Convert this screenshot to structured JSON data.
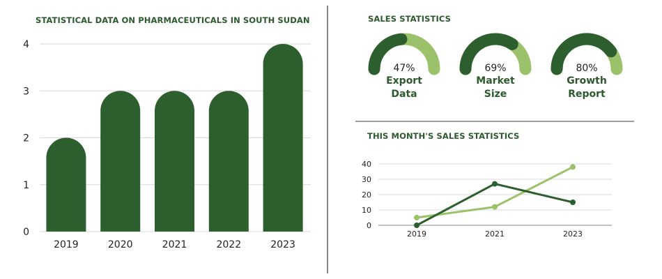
{
  "bar_title": "STATISTICAL DATA ON PHARMACEUTICALS IN SOUTH SUDAN",
  "sales_title": "SALES STATISTICS",
  "month_title": "THIS MONTH'S SALES STATISTICS",
  "colors": {
    "dark": "#2d5e2d",
    "light": "#9bc26a",
    "grid": "#d8d8d8",
    "divider": "#333333"
  },
  "chart_data": [
    {
      "type": "bar",
      "title": "STATISTICAL DATA ON PHARMACEUTICALS IN SOUTH SUDAN",
      "categories": [
        "2019",
        "2020",
        "2021",
        "2022",
        "2023"
      ],
      "values": [
        2,
        3,
        3,
        3,
        4
      ],
      "yticks": [
        "0",
        "1",
        "2",
        "3",
        "4"
      ],
      "ylim": [
        0,
        4
      ],
      "grid": true
    },
    {
      "type": "gauge",
      "title": "SALES STATISTICS",
      "items": [
        {
          "name_lines": [
            "Export",
            "Data"
          ],
          "value": 47,
          "label": "47%"
        },
        {
          "name_lines": [
            "Market",
            "Size"
          ],
          "value": 69,
          "label": "69%"
        },
        {
          "name_lines": [
            "Growth",
            "Report"
          ],
          "value": 80,
          "label": "80%"
        }
      ]
    },
    {
      "type": "line",
      "title": "THIS MONTH'S SALES STATISTICS",
      "categories": [
        "2019",
        "2021",
        "2023"
      ],
      "series": [
        {
          "values": [
            5,
            12,
            38
          ],
          "color": "light"
        },
        {
          "values": [
            0,
            27,
            15
          ],
          "color": "dark"
        }
      ],
      "yticks": [
        "0",
        "10",
        "20",
        "30",
        "40"
      ],
      "ylim": [
        0,
        40
      ],
      "grid": true
    }
  ]
}
